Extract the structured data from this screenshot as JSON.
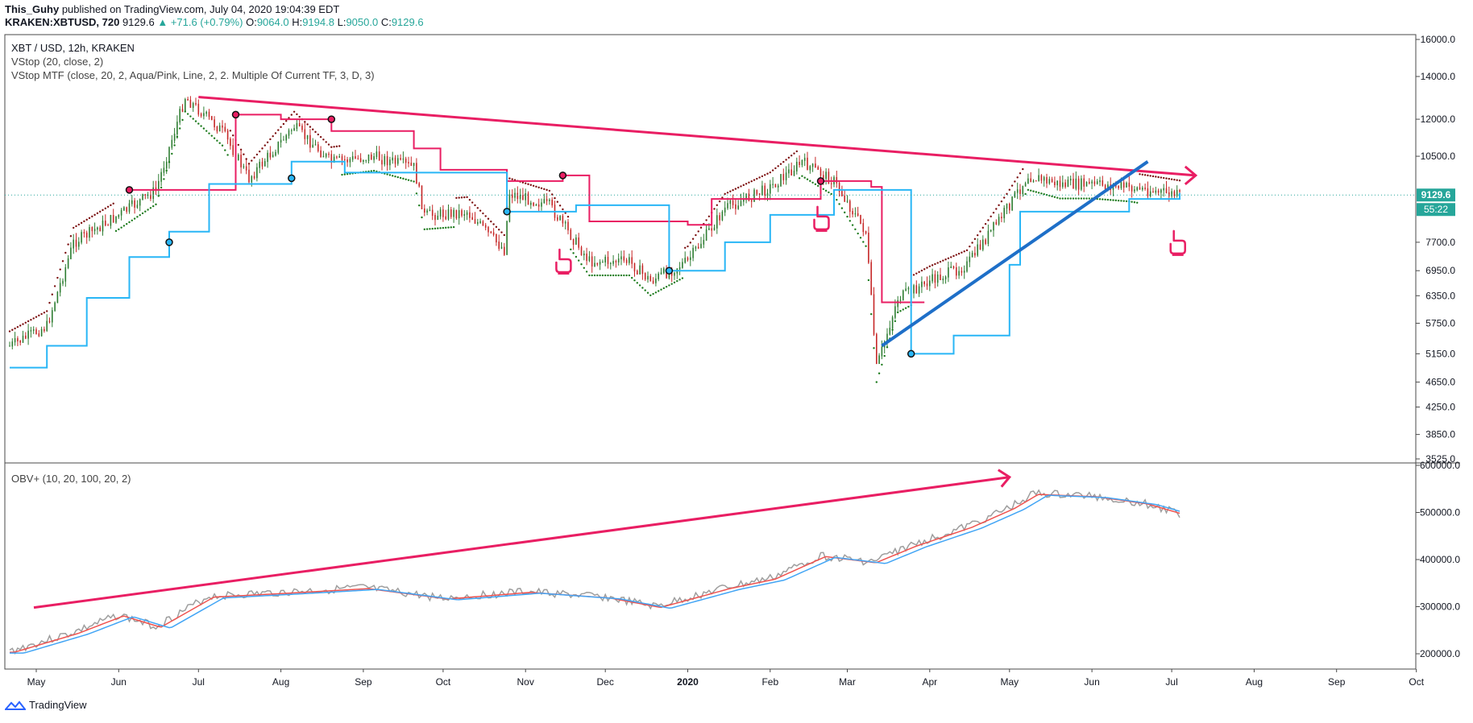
{
  "header": {
    "author": "This_Guhy",
    "published": "published on TradingView.com, July 04, 2020 19:04:39 EDT",
    "symbol": "KRAKEN:XBTUSD, 720",
    "last": "9129.6",
    "change": "+71.6 (+0.79%)",
    "o_label": "O:",
    "o_value": "9064.0",
    "h_label": "H:",
    "h_value": "9194.8",
    "l_label": "L:",
    "l_value": "9050.0",
    "c_label": "C:",
    "c_value": "9129.6"
  },
  "legend": {
    "title": "XBT / USD, 12h, KRAKEN",
    "vstop": "VStop (20, close, 2)",
    "vstop_mtf": "VStop MTF (close, 20, 2, Aqua/Pink, Line, 2, 2. Multiple Of Current TF, 3, D, 3)",
    "obv": "OBV+ (10, 20, 100, 20, 2)"
  },
  "price_badge": "9129.6",
  "timer_badge": "55:22",
  "footer_brand": "TradingView",
  "colors": {
    "pink": "#e91e63",
    "aqua": "#29b6f6",
    "blue": "#1e6fc8",
    "up": "#26a69a",
    "candle_up": "#2e7d32",
    "candle_down": "#c62828"
  },
  "chart_data": [
    {
      "type": "line",
      "title": "XBT / USD, 12h, KRAKEN",
      "price_axis_ticks": [
        "16000.0",
        "14000.0",
        "12000.0",
        "10500.0",
        "9129.6",
        "7700.0",
        "6950.0",
        "6350.0",
        "5750.0",
        "5150.0",
        "4650.0",
        "4250.0",
        "3850.0",
        "3525.0"
      ],
      "price_axis_values": [
        16000,
        14000,
        12000,
        10500,
        9129.6,
        7700,
        6950,
        6350,
        5750,
        5150,
        4650,
        4250,
        3850,
        3525
      ],
      "x_tick_labels": [
        "May",
        "Jun",
        "Jul",
        "Aug",
        "Sep",
        "Oct",
        "Nov",
        "Dec",
        "2020",
        "Feb",
        "Mar",
        "Apr",
        "May",
        "Jun",
        "Jul",
        "Aug",
        "Sep",
        "Oct"
      ],
      "series": [
        {
          "name": "XBT/USD close (approx.)",
          "dates": [
            "Apr 21 2019",
            "May 5",
            "May 15",
            "Jun 1",
            "Jun 15",
            "Jun 26",
            "Jul 10",
            "Jul 20",
            "Aug 6",
            "Aug 20",
            "Sep 5",
            "Sep 20",
            "Sep 24",
            "Oct 10",
            "Oct 24",
            "Oct 26",
            "Nov 10",
            "Nov 25",
            "Dec 10",
            "Dec 18",
            "Jan 1 2020",
            "Jan 15",
            "Feb 1",
            "Feb 13",
            "Feb 25",
            "Mar 8",
            "Mar 12",
            "Mar 20",
            "Apr 1",
            "Apr 15",
            "Apr 30",
            "May 8",
            "May 20",
            "Jun 1",
            "Jun 15",
            "Jul 4"
          ],
          "values": [
            5300,
            5700,
            7700,
            8500,
            9300,
            13000,
            11500,
            9700,
            11700,
            10300,
            10500,
            10100,
            8500,
            8600,
            7500,
            9200,
            8800,
            7200,
            7200,
            6700,
            7200,
            8700,
            9400,
            10300,
            9600,
            8000,
            4900,
            6300,
            6700,
            7100,
            8700,
            9800,
            9500,
            9500,
            9400,
            9130
          ]
        },
        {
          "name": "VStop MTF (pink resistance)",
          "dates": [
            "Jun 5 2019",
            "Jun 20",
            "Jul 15",
            "Aug 1",
            "Aug 20",
            "Sep 5",
            "Sep 20",
            "Sep 30",
            "Oct 25",
            "Nov 15",
            "Nov 25",
            "Jan 1 2020",
            "Jan 10",
            "Feb 20",
            "Mar 10",
            "Mar 14",
            "Mar 30"
          ],
          "values": [
            9300,
            9300,
            12200,
            12000,
            11500,
            11500,
            10800,
            10000,
            9600,
            9800,
            8300,
            8200,
            9000,
            9600,
            9400,
            6200,
            6200
          ]
        },
        {
          "name": "VStop MTF (aqua support)",
          "dates": [
            "Apr 21 2019",
            "May 5",
            "May 20",
            "Jun 5",
            "Jun 20",
            "Jul 5",
            "Aug 5",
            "Aug 25",
            "Oct 25",
            "Nov 20",
            "Dec 25",
            "Jan 15",
            "Feb 1",
            "Feb 25",
            "Mar 25",
            "Apr 10",
            "May 1",
            "May 5",
            "Jun 15",
            "Jul 4"
          ],
          "values": [
            4900,
            5300,
            6300,
            7300,
            8000,
            9500,
            10300,
            9900,
            8600,
            8800,
            6950,
            7700,
            8500,
            9300,
            5150,
            5500,
            7100,
            8600,
            9000,
            9200
          ]
        },
        {
          "name": "Descending resistance trendline",
          "dates": [
            "Jul 1 2019",
            "Jul 10 2020"
          ],
          "values": [
            13000,
            9800
          ]
        },
        {
          "name": "Ascending support trendline",
          "dates": [
            "Mar 14 2020",
            "Jun 22 2020"
          ],
          "values": [
            5300,
            10300
          ]
        }
      ],
      "markers": [
        {
          "kind": "hand-pointing-up",
          "date": "Nov 15 2019",
          "value": 7200
        },
        {
          "kind": "hand-pointing-up",
          "date": "Feb 20 2020",
          "value": 8400
        },
        {
          "kind": "hand-pointing-up",
          "date": "Jul 3 2020",
          "value": 7700
        }
      ]
    },
    {
      "type": "line",
      "title": "OBV+ (10, 20, 100, 20, 2)",
      "axis_ticks": [
        "600000.0",
        "500000.0",
        "400000.0",
        "300000.0",
        "200000.0"
      ],
      "axis_values": [
        600000,
        500000,
        400000,
        300000,
        200000
      ],
      "series": [
        {
          "name": "OBV",
          "dates": [
            "Apr 21 2019",
            "May 15",
            "Jun 1",
            "Jun 15",
            "Jul 5",
            "Aug 1",
            "Sep 1",
            "Oct 1",
            "Nov 1",
            "Dec 1",
            "Dec 20",
            "Jan 15 2020",
            "Feb 1",
            "Feb 20",
            "Mar 10",
            "Mar 25",
            "Apr 15",
            "May 1",
            "May 10",
            "Jun 1",
            "Jun 20",
            "Jul 4"
          ],
          "values": [
            205000,
            245000,
            282000,
            258000,
            322000,
            330000,
            340000,
            318000,
            332000,
            320000,
            300000,
            340000,
            360000,
            408000,
            395000,
            430000,
            470000,
            510000,
            540000,
            535000,
            520000,
            497000
          ]
        },
        {
          "name": "Ascending OBV trendline",
          "dates": [
            "Apr 21 2019",
            "May 1 2020"
          ],
          "values": [
            298000,
            575000
          ]
        }
      ]
    }
  ]
}
